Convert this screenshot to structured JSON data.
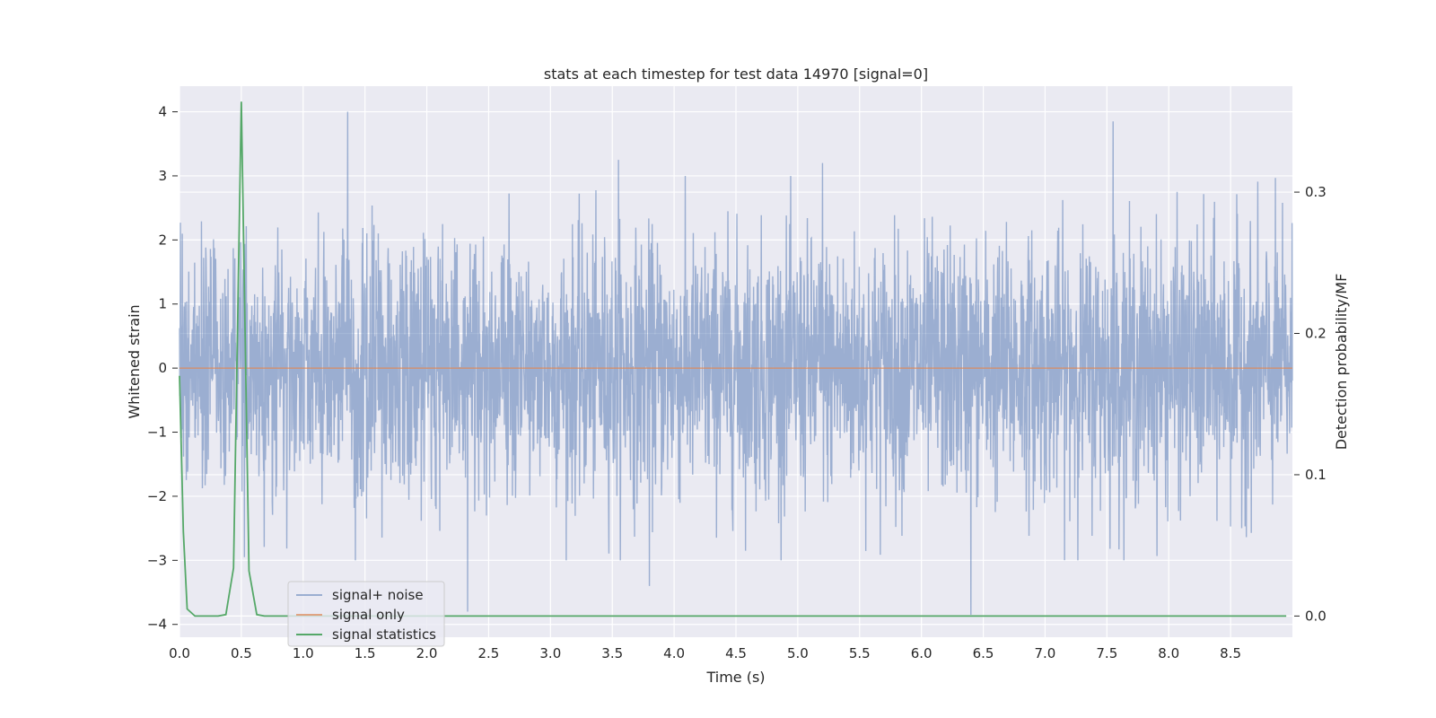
{
  "chart_data": {
    "type": "line",
    "title": "stats at each timestep for test data 14970 [signal=0]",
    "xlabel": "Time (s)",
    "ylabel": "Whitened strain",
    "y2label": "Detection probability/MF",
    "xlim": [
      0.0,
      9.0
    ],
    "ylim": [
      -4.2,
      4.4
    ],
    "y2lim": [
      -0.015,
      0.375
    ],
    "x_ticks": [
      "0.0",
      "0.5",
      "1.0",
      "1.5",
      "2.0",
      "2.5",
      "3.0",
      "3.5",
      "4.0",
      "4.5",
      "5.0",
      "5.5",
      "6.0",
      "6.5",
      "7.0",
      "7.5",
      "8.0",
      "8.5"
    ],
    "y_ticks": [
      "4",
      "3",
      "2",
      "1",
      "0",
      "−1",
      "−2",
      "−3",
      "−4"
    ],
    "y2_ticks": [
      "0.3",
      "0.2",
      "0.1",
      "0.0"
    ],
    "grid": true,
    "legend_position": "lower-left",
    "series": [
      {
        "name": "signal+ noise",
        "axis": "left",
        "color": "#4c72b0",
        "description_range": [
          -3.85,
          4.0
        ],
        "peaks_x": [
          1.36,
          3.55,
          5.2,
          7.55,
          6.4,
          2.33,
          3.8
        ],
        "peaks_y": [
          4.0,
          3.25,
          3.2,
          3.85,
          -3.85,
          -3.8,
          -3.4
        ]
      },
      {
        "name": "signal only",
        "axis": "left",
        "color": "#dd8452",
        "x": [
          0.0,
          9.0
        ],
        "y": [
          0.0,
          0.0
        ]
      },
      {
        "name": "signal statistics",
        "axis": "right",
        "color": "#55a868",
        "x": [
          0.0,
          0.031,
          0.062,
          0.125,
          0.187,
          0.25,
          0.312,
          0.375,
          0.437,
          0.5,
          0.562,
          0.625,
          0.687,
          1.0,
          2.0,
          3.0,
          4.0,
          5.0,
          6.0,
          7.0,
          8.0,
          8.95
        ],
        "y": [
          0.17,
          0.06,
          0.005,
          0.0,
          0.0,
          0.0,
          0.0,
          0.001,
          0.034,
          0.364,
          0.032,
          0.001,
          0.0,
          0.0,
          0.0,
          0.0,
          0.0,
          0.0,
          0.0,
          0.0,
          0.0,
          0.0
        ]
      }
    ]
  }
}
